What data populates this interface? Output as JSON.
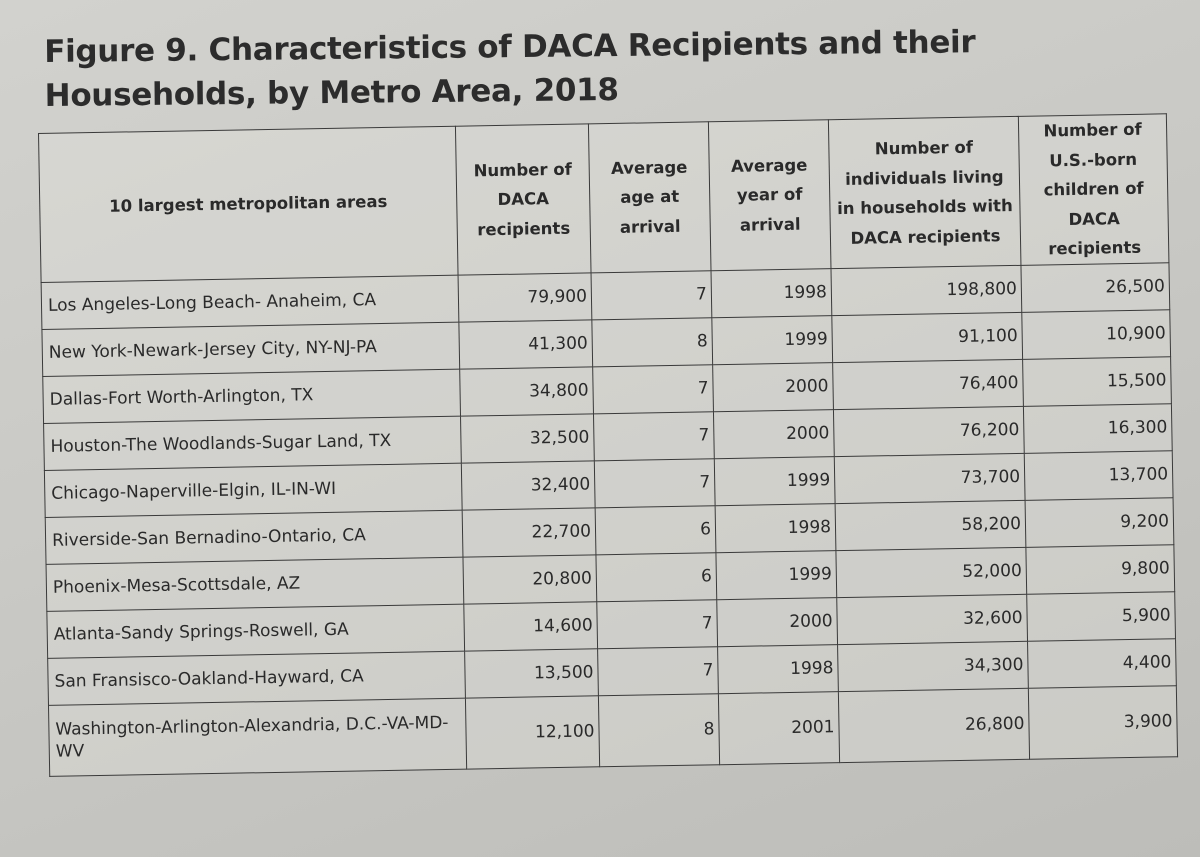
{
  "chart_data": {
    "type": "table",
    "title": "Figure 9. Characteristics of DACA Recipients and their Households, by Metro Area, 2018",
    "columns": [
      "10 largest metropolitan areas",
      "Number of DACA recipients",
      "Average age at arrival",
      "Average year of arrival",
      "Number of individuals living in households with DACA recipients",
      "Number of U.S.-born children of DACA recipients"
    ],
    "rows": [
      {
        "metro": "Los Angeles-Long Beach- Anaheim, CA",
        "recipients": "79,900",
        "age": "7",
        "year": "1998",
        "individuals": "198,800",
        "children": "26,500"
      },
      {
        "metro": "New York-Newark-Jersey City, NY-NJ-PA",
        "recipients": "41,300",
        "age": "8",
        "year": "1999",
        "individuals": "91,100",
        "children": "10,900"
      },
      {
        "metro": "Dallas-Fort Worth-Arlington, TX",
        "recipients": "34,800",
        "age": "7",
        "year": "2000",
        "individuals": "76,400",
        "children": "15,500"
      },
      {
        "metro": "Houston-The Woodlands-Sugar Land, TX",
        "recipients": "32,500",
        "age": "7",
        "year": "2000",
        "individuals": "76,200",
        "children": "16,300"
      },
      {
        "metro": "Chicago-Naperville-Elgin, IL-IN-WI",
        "recipients": "32,400",
        "age": "7",
        "year": "1999",
        "individuals": "73,700",
        "children": "13,700"
      },
      {
        "metro": "Riverside-San Bernadino-Ontario, CA",
        "recipients": "22,700",
        "age": "6",
        "year": "1998",
        "individuals": "58,200",
        "children": "9,200"
      },
      {
        "metro": "Phoenix-Mesa-Scottsdale, AZ",
        "recipients": "20,800",
        "age": "6",
        "year": "1999",
        "individuals": "52,000",
        "children": "9,800"
      },
      {
        "metro": "Atlanta-Sandy Springs-Roswell, GA",
        "recipients": "14,600",
        "age": "7",
        "year": "2000",
        "individuals": "32,600",
        "children": "5,900"
      },
      {
        "metro": "San Fransisco-Oakland-Hayward, CA",
        "recipients": "13,500",
        "age": "7",
        "year": "1998",
        "individuals": "34,300",
        "children": "4,400"
      },
      {
        "metro": "Washington-Arlington-Alexandria, D.C.-VA-MD-WV",
        "recipients": "12,100",
        "age": "8",
        "year": "2001",
        "individuals": "26,800",
        "children": "3,900"
      }
    ]
  }
}
